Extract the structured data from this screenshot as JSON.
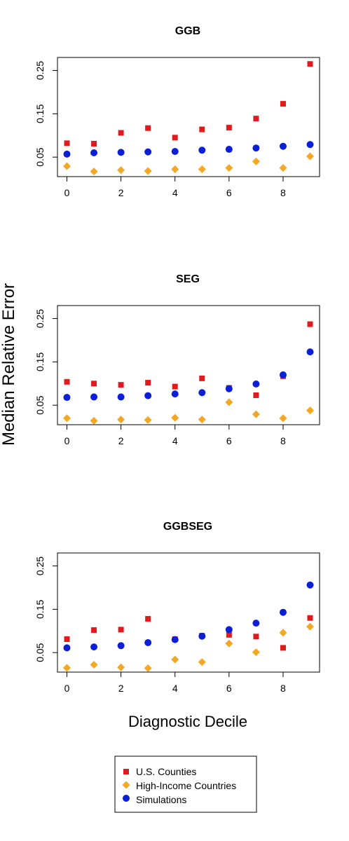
{
  "figure": {
    "ylabel": "Median Relative Error",
    "xlabel": "Diagnostic Decile"
  },
  "legend": {
    "placement": "bottom-center",
    "entries": [
      {
        "name": "U.S. Counties",
        "marker": "square",
        "color": "#e31a1c"
      },
      {
        "name": "High-Income Countries",
        "marker": "diamond",
        "color": "#f5a623"
      },
      {
        "name": "Simulations",
        "marker": "circle",
        "color": "#0b1fd6"
      }
    ]
  },
  "chart_data": [
    {
      "type": "scatter",
      "title": "GGB",
      "x": [
        0,
        1,
        2,
        3,
        4,
        5,
        6,
        7,
        8,
        9
      ],
      "xticks": [
        "0",
        "2",
        "4",
        "6",
        "8"
      ],
      "xtick_values": [
        0,
        2,
        4,
        6,
        8
      ],
      "yticks": [
        "0.05",
        "0.15",
        "0.25"
      ],
      "ytick_values": [
        0.05,
        0.15,
        0.25
      ],
      "xlim": [
        -0.35,
        9.35
      ],
      "ylim": [
        0.005,
        0.28
      ],
      "grid": false,
      "series": [
        {
          "name": "U.S. Counties",
          "values": [
            0.082,
            0.081,
            0.106,
            0.117,
            0.095,
            0.114,
            0.118,
            0.139,
            0.173,
            0.265
          ]
        },
        {
          "name": "High-Income Countries",
          "values": [
            0.029,
            0.017,
            0.02,
            0.018,
            0.022,
            0.022,
            0.025,
            0.04,
            0.025,
            0.052
          ]
        },
        {
          "name": "Simulations",
          "values": [
            0.057,
            0.06,
            0.061,
            0.062,
            0.063,
            0.066,
            0.068,
            0.071,
            0.075,
            0.079
          ]
        }
      ]
    },
    {
      "type": "scatter",
      "title": "SEG",
      "x": [
        0,
        1,
        2,
        3,
        4,
        5,
        6,
        7,
        8,
        9
      ],
      "xticks": [
        "0",
        "2",
        "4",
        "6",
        "8"
      ],
      "xtick_values": [
        0,
        2,
        4,
        6,
        8
      ],
      "yticks": [
        "0.05",
        "0.15",
        "0.25"
      ],
      "ytick_values": [
        0.05,
        0.15,
        0.25
      ],
      "xlim": [
        -0.35,
        9.35
      ],
      "ylim": [
        0.005,
        0.28
      ],
      "grid": false,
      "series": [
        {
          "name": "U.S. Counties",
          "values": [
            0.104,
            0.1,
            0.097,
            0.102,
            0.093,
            0.112,
            0.09,
            0.073,
            0.117,
            0.237
          ]
        },
        {
          "name": "High-Income Countries",
          "values": [
            0.02,
            0.014,
            0.017,
            0.016,
            0.021,
            0.017,
            0.057,
            0.029,
            0.02,
            0.038
          ]
        },
        {
          "name": "Simulations",
          "values": [
            0.068,
            0.069,
            0.069,
            0.072,
            0.076,
            0.079,
            0.088,
            0.099,
            0.12,
            0.173
          ]
        }
      ]
    },
    {
      "type": "scatter",
      "title": "GGBSEG",
      "x": [
        0,
        1,
        2,
        3,
        4,
        5,
        6,
        7,
        8,
        9
      ],
      "xticks": [
        "0",
        "2",
        "4",
        "6",
        "8"
      ],
      "xtick_values": [
        0,
        2,
        4,
        6,
        8
      ],
      "yticks": [
        "0.05",
        "0.15",
        "0.25"
      ],
      "ytick_values": [
        0.05,
        0.15,
        0.25
      ],
      "xlim": [
        -0.35,
        9.35
      ],
      "ylim": [
        0.005,
        0.28
      ],
      "grid": false,
      "series": [
        {
          "name": "U.S. Counties",
          "values": [
            0.081,
            0.102,
            0.103,
            0.128,
            0.081,
            0.089,
            0.091,
            0.087,
            0.061,
            0.13
          ]
        },
        {
          "name": "High-Income Countries",
          "values": [
            0.015,
            0.022,
            0.016,
            0.014,
            0.034,
            0.028,
            0.071,
            0.051,
            0.096,
            0.11
          ]
        },
        {
          "name": "Simulations",
          "values": [
            0.061,
            0.063,
            0.066,
            0.073,
            0.08,
            0.088,
            0.103,
            0.118,
            0.143,
            0.206
          ]
        }
      ]
    }
  ]
}
